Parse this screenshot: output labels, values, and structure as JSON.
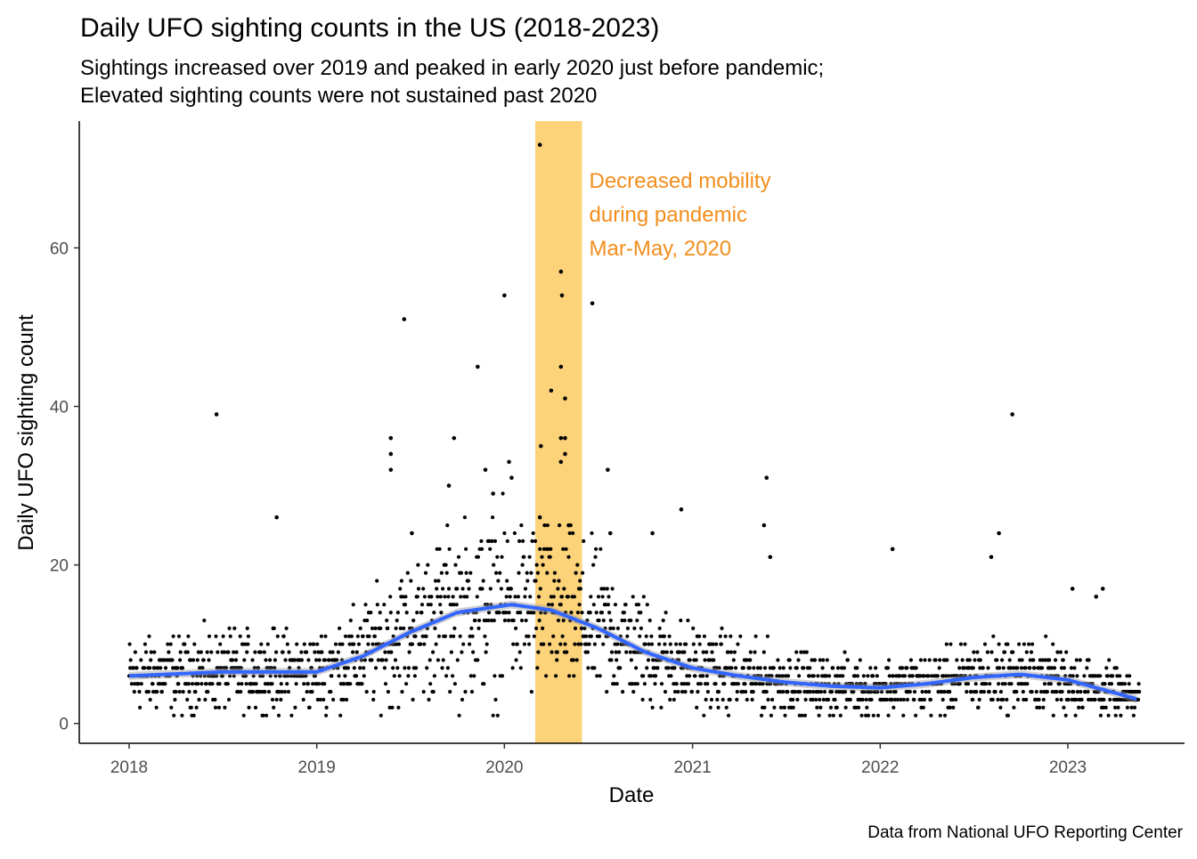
{
  "chart_data": {
    "type": "scatter",
    "title": "Daily UFO sighting counts in the US (2018-2023)",
    "subtitle": [
      "Sightings increased over 2019 and peaked in early 2020 just before pandemic;",
      "Elevated sighting counts were not sustained past 2020"
    ],
    "xlabel": "Date",
    "ylabel": "Daily UFO sighting count",
    "caption": "Data from National UFO Reporting Center",
    "xlim": [
      "2017-09-26",
      "2023-08-16"
    ],
    "ylim": [
      -2.5,
      76
    ],
    "x_ticks": [
      "2018",
      "2019",
      "2020",
      "2021",
      "2022",
      "2023"
    ],
    "y_ticks": [
      0,
      20,
      40,
      60
    ],
    "grid": false,
    "legend": "none",
    "shaded_period": {
      "start": "2020-03-01",
      "end": "2020-05-31",
      "color": "#FDD37A"
    },
    "annotation": {
      "lines": [
        "Decreased mobility",
        "during pandemic",
        "Mar-May, 2020"
      ],
      "color": "#F28E1C"
    },
    "colors": {
      "points": "#000000",
      "smooth": "#3366FF",
      "band": "#999999"
    },
    "outliers": [
      {
        "x": "2018-06-20",
        "y": 39
      },
      {
        "x": "2018-10-15",
        "y": 26
      },
      {
        "x": "2019-06-20",
        "y": 51
      },
      {
        "x": "2019-05-25",
        "y": 36
      },
      {
        "x": "2019-05-25",
        "y": 34
      },
      {
        "x": "2019-05-25",
        "y": 32
      },
      {
        "x": "2019-07-05",
        "y": 24
      },
      {
        "x": "2019-09-15",
        "y": 30
      },
      {
        "x": "2019-09-25",
        "y": 36
      },
      {
        "x": "2019-11-10",
        "y": 45
      },
      {
        "x": "2019-11-25",
        "y": 32
      },
      {
        "x": "2019-12-10",
        "y": 29
      },
      {
        "x": "2020-01-01",
        "y": 54
      },
      {
        "x": "2020-01-10",
        "y": 33
      },
      {
        "x": "2020-01-15",
        "y": 31
      },
      {
        "x": "2020-03-10",
        "y": 73
      },
      {
        "x": "2020-03-12",
        "y": 35
      },
      {
        "x": "2020-03-10",
        "y": 26
      },
      {
        "x": "2020-04-01",
        "y": 42
      },
      {
        "x": "2020-04-20",
        "y": 57
      },
      {
        "x": "2020-04-22",
        "y": 54
      },
      {
        "x": "2020-04-20",
        "y": 45
      },
      {
        "x": "2020-04-28",
        "y": 41
      },
      {
        "x": "2020-04-20",
        "y": 36
      },
      {
        "x": "2020-04-28",
        "y": 36
      },
      {
        "x": "2020-04-28",
        "y": 34
      },
      {
        "x": "2020-04-20",
        "y": 33
      },
      {
        "x": "2020-05-05",
        "y": 25
      },
      {
        "x": "2020-06-20",
        "y": 53
      },
      {
        "x": "2020-07-20",
        "y": 32
      },
      {
        "x": "2020-07-25",
        "y": 24
      },
      {
        "x": "2020-10-15",
        "y": 24
      },
      {
        "x": "2020-12-10",
        "y": 27
      },
      {
        "x": "2021-05-20",
        "y": 25
      },
      {
        "x": "2021-05-25",
        "y": 31
      },
      {
        "x": "2021-06-01",
        "y": 21
      },
      {
        "x": "2022-01-25",
        "y": 22
      },
      {
        "x": "2022-08-05",
        "y": 21
      },
      {
        "x": "2022-08-20",
        "y": 24
      },
      {
        "x": "2022-09-15",
        "y": 39
      },
      {
        "x": "2023-01-10",
        "y": 17
      },
      {
        "x": "2023-03-10",
        "y": 17
      },
      {
        "x": "2023-02-25",
        "y": 16
      }
    ],
    "smooth_trend": [
      {
        "x": "2018-01-01",
        "y": 6
      },
      {
        "x": "2018-07-01",
        "y": 6.5
      },
      {
        "x": "2019-01-01",
        "y": 6.5
      },
      {
        "x": "2019-04-01",
        "y": 8.5
      },
      {
        "x": "2019-07-01",
        "y": 11.5
      },
      {
        "x": "2019-10-01",
        "y": 14
      },
      {
        "x": "2020-01-15",
        "y": 15
      },
      {
        "x": "2020-04-01",
        "y": 14.3
      },
      {
        "x": "2020-07-01",
        "y": 12
      },
      {
        "x": "2020-10-01",
        "y": 9
      },
      {
        "x": "2021-01-01",
        "y": 7
      },
      {
        "x": "2021-04-01",
        "y": 6
      },
      {
        "x": "2021-07-01",
        "y": 5.2
      },
      {
        "x": "2021-10-01",
        "y": 4.7
      },
      {
        "x": "2022-01-01",
        "y": 4.5
      },
      {
        "x": "2022-04-01",
        "y": 5
      },
      {
        "x": "2022-07-01",
        "y": 5.8
      },
      {
        "x": "2022-10-01",
        "y": 6.2
      },
      {
        "x": "2023-01-01",
        "y": 5.5
      },
      {
        "x": "2023-05-20",
        "y": 3
      }
    ]
  }
}
